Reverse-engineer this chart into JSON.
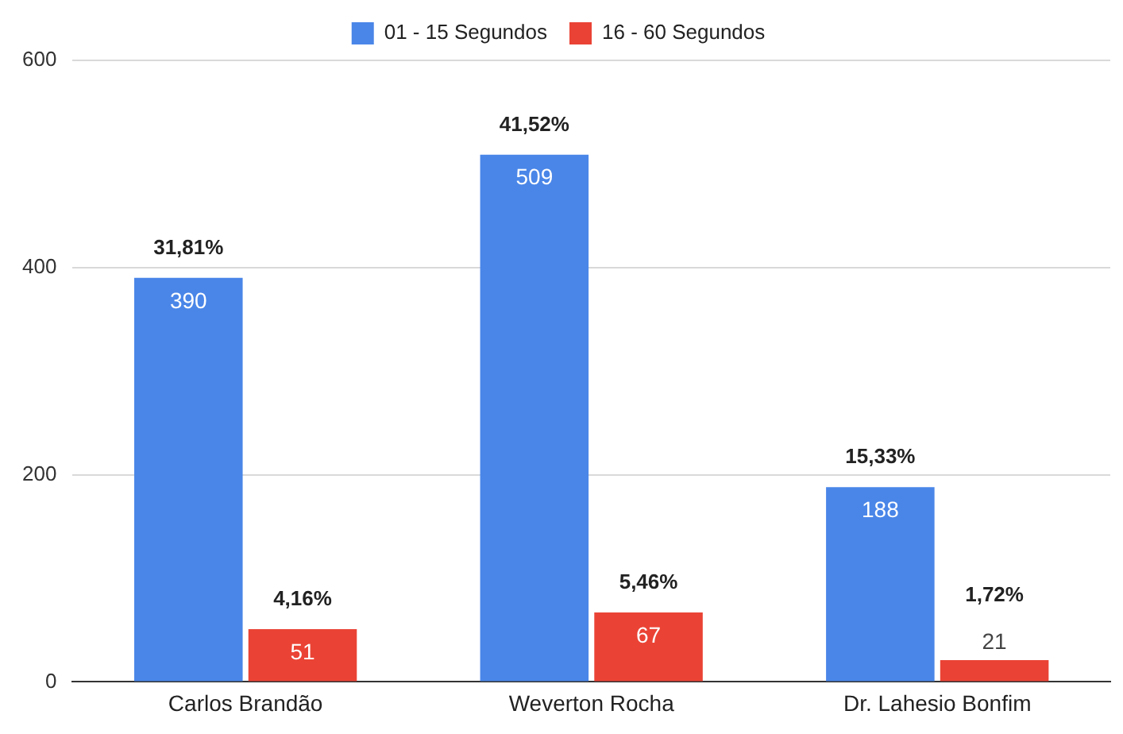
{
  "chart_data": {
    "type": "bar",
    "categories": [
      "Carlos Brandão",
      "Weverton Rocha",
      "Dr. Lahesio Bonfim"
    ],
    "series": [
      {
        "name": "01 - 15 Segundos",
        "color": "#4a86e8",
        "values": [
          390,
          509,
          188
        ]
      },
      {
        "name": "16 - 60 Segundos",
        "color": "#ea4335",
        "values": [
          51,
          67,
          21
        ]
      }
    ],
    "ylim": [
      0,
      600
    ],
    "yticks": [
      0,
      200,
      400,
      600
    ],
    "grid": "y",
    "legend": "top",
    "data_labels": true,
    "annotations": [
      {
        "text": "31,81%",
        "x": "Carlos Brandão",
        "y": 390
      },
      {
        "text": "4,16%",
        "x": "Carlos Brandão",
        "y": 51
      },
      {
        "text": "41,52%",
        "x": "Weverton Rocha",
        "y": 509
      },
      {
        "text": "5,46%",
        "x": "Weverton Rocha",
        "y": 67
      },
      {
        "text": "15,33%",
        "x": "Dr. Lahesio Bonfim",
        "y": 188
      },
      {
        "text": "1,72%",
        "x": "Dr. Lahesio Bonfim",
        "y": 21
      }
    ]
  }
}
